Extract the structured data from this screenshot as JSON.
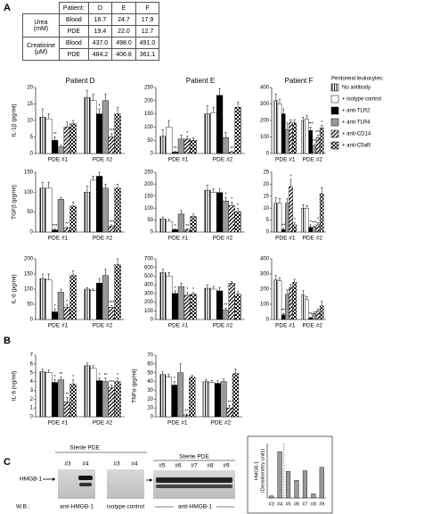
{
  "panels": [
    "A",
    "B",
    "C"
  ],
  "table": {
    "header": [
      "Patient:",
      "D",
      "E",
      "F"
    ],
    "groups": [
      {
        "label": [
          "Urea",
          "(mM)"
        ],
        "rows": [
          [
            "Blood",
            "16.7",
            "24.7",
            "17.9"
          ],
          [
            "PDE",
            "19.4",
            "22.0",
            "12.7"
          ]
        ]
      },
      {
        "label": [
          "Creatinine",
          "(μM)"
        ],
        "rows": [
          [
            "Blood",
            "437.0",
            "498.0",
            "491.0"
          ],
          [
            "PDE",
            "484.2",
            "406.8",
            "361.1"
          ]
        ]
      }
    ]
  },
  "legend": {
    "title": "Peritoneal leukocytes:",
    "items": [
      {
        "name": "No antibody",
        "pattern": "vstripe"
      },
      {
        "name": "+ isotype control",
        "pattern": "white"
      },
      {
        "name": "+ anti-TLR2",
        "pattern": "black"
      },
      {
        "name": "+ anti-TLR4",
        "pattern": "gray"
      },
      {
        "name": "+ anti-CD14",
        "pattern": "diag"
      },
      {
        "name": "+ anti-C5aR",
        "pattern": "check"
      }
    ]
  },
  "blot": {
    "left_title": "Sterile PDE",
    "lanes_a": [
      "#3",
      "#4"
    ],
    "lanes_b": [
      "#3",
      "#4"
    ],
    "band_label": "HMGB-1",
    "wb_label": "W.B.:",
    "antibody_a": "anti-HMGB-1",
    "antibody_b": "isotype control",
    "right_title": "Sterile PDE",
    "lanes_c": [
      "#5",
      "#6",
      "#7",
      "#8",
      "#9"
    ],
    "antibody_c": "anti-HMGB-1"
  },
  "chart_data": [
    {
      "type": "bar",
      "title": "Patient D",
      "ylabel": "IL-1β (pg/ml)",
      "categories": [
        "PDE #1",
        "PDE #2"
      ],
      "ylim": [
        0,
        20
      ],
      "yticks": [
        0,
        5,
        10,
        15,
        20
      ],
      "series": [
        {
          "values": [
            11,
            17
          ],
          "errors": [
            2.5,
            2
          ]
        },
        {
          "values": [
            10.5,
            16
          ],
          "errors": [
            1.5,
            2
          ]
        },
        {
          "values": [
            4,
            12
          ],
          "errors": [
            1,
            1.5
          ],
          "stars": [
            "**",
            "*"
          ]
        },
        {
          "values": [
            2,
            16
          ],
          "errors": [
            0.5,
            2
          ]
        },
        {
          "values": [
            8,
            5
          ],
          "errors": [
            1.5,
            1
          ],
          "stars": [
            null,
            "***"
          ]
        },
        {
          "values": [
            9,
            12
          ],
          "errors": [
            1,
            2
          ]
        }
      ]
    },
    {
      "type": "bar",
      "title": "Patient E",
      "categories": [
        "PDE #1",
        "PDE #2"
      ],
      "ylim": [
        0,
        250
      ],
      "yticks": [
        0,
        50,
        100,
        150,
        200,
        250
      ],
      "series": [
        {
          "values": [
            65,
            150
          ],
          "errors": [
            25,
            30
          ]
        },
        {
          "values": [
            100,
            155
          ],
          "errors": [
            25,
            20
          ]
        },
        {
          "values": [
            5,
            220
          ],
          "errors": [
            3,
            25
          ],
          "stars": [
            "**",
            null
          ]
        },
        {
          "values": [
            55,
            60
          ],
          "errors": [
            15,
            20
          ]
        },
        {
          "values": [
            55,
            5
          ],
          "errors": [
            10,
            3
          ],
          "stars": [
            "*",
            "**"
          ]
        },
        {
          "values": [
            50,
            175
          ],
          "errors": [
            10,
            20
          ]
        }
      ]
    },
    {
      "type": "bar",
      "title": "Patient F",
      "categories": [
        "PDE #1",
        "PDE #2"
      ],
      "ylim": [
        0,
        400
      ],
      "yticks": [
        0,
        100,
        200,
        300,
        400
      ],
      "series": [
        {
          "values": [
            320,
            200
          ],
          "errors": [
            40,
            20
          ]
        },
        {
          "values": [
            300,
            210
          ],
          "errors": [
            30,
            20
          ]
        },
        {
          "values": [
            240,
            140
          ],
          "errors": [
            30,
            20
          ],
          "stars": [
            null,
            "***"
          ]
        },
        {
          "values": [
            145,
            45
          ],
          "errors": [
            40,
            10
          ],
          "stars": [
            null,
            "**"
          ]
        },
        {
          "values": [
            185,
            95
          ],
          "errors": [
            20,
            15
          ],
          "stars": [
            null,
            "***"
          ]
        },
        {
          "values": [
            185,
            155
          ],
          "errors": [
            20,
            15
          ],
          "stars": [
            null,
            "*"
          ]
        }
      ]
    },
    {
      "type": "bar",
      "ylabel": "TGFβ (pg/ml)",
      "categories": [
        "PDE #1",
        "PDE #2"
      ],
      "ylim": [
        0,
        150
      ],
      "yticks": [
        0,
        50,
        100,
        150
      ],
      "series": [
        {
          "values": [
            110,
            100
          ],
          "errors": [
            15,
            15
          ]
        },
        {
          "values": [
            110,
            130
          ],
          "errors": [
            15,
            10
          ]
        },
        {
          "values": [
            5,
            140
          ],
          "errors": [
            3,
            10
          ],
          "stars": [
            "***",
            null
          ]
        },
        {
          "values": [
            82,
            110
          ],
          "errors": [
            5,
            10
          ]
        },
        {
          "values": [
            10,
            15
          ],
          "errors": [
            3,
            3
          ],
          "stars": [
            "**",
            "***"
          ]
        },
        {
          "values": [
            65,
            110
          ],
          "errors": [
            10,
            10
          ]
        }
      ]
    },
    {
      "type": "bar",
      "categories": [
        "PDE #1",
        "PDE #2"
      ],
      "ylim": [
        0,
        250
      ],
      "yticks": [
        0,
        50,
        100,
        150,
        200,
        250
      ],
      "series": [
        {
          "values": [
            55,
            175
          ],
          "errors": [
            8,
            20
          ]
        },
        {
          "values": [
            45,
            165
          ],
          "errors": [
            8,
            15
          ]
        },
        {
          "values": [
            10,
            165
          ],
          "errors": [
            3,
            15
          ],
          "stars": [
            "*",
            null
          ]
        },
        {
          "values": [
            75,
            130
          ],
          "errors": [
            15,
            15
          ],
          "stars": [
            null,
            "*"
          ]
        },
        {
          "values": [
            10,
            110
          ],
          "errors": [
            3,
            15
          ],
          "stars": [
            "**",
            "*"
          ]
        },
        {
          "values": [
            65,
            85
          ],
          "errors": [
            10,
            15
          ],
          "stars": [
            null,
            "*"
          ]
        }
      ]
    },
    {
      "type": "bar",
      "categories": [
        "PDE #1",
        "PDE #2"
      ],
      "ylim": [
        0,
        25
      ],
      "yticks": [
        0,
        5,
        10,
        15,
        20,
        25
      ],
      "series": [
        {
          "values": [
            12,
            10
          ],
          "errors": [
            2.5,
            1.5
          ]
        },
        {
          "values": [
            12,
            10
          ],
          "errors": [
            2,
            1
          ]
        },
        {
          "values": [
            1,
            2
          ],
          "errors": [
            0.5,
            1
          ],
          "stars": [
            "**",
            "*"
          ]
        },
        {
          "values": [
            12,
            2
          ],
          "errors": [
            2,
            0.5
          ],
          "stars": [
            null,
            "***"
          ]
        },
        {
          "values": [
            19,
            3
          ],
          "errors": [
            3,
            1
          ],
          "stars": [
            "*",
            "*"
          ]
        },
        {
          "values": [
            3,
            16
          ],
          "errors": [
            1,
            2.5
          ],
          "stars": [
            "*",
            null
          ]
        }
      ]
    },
    {
      "type": "bar",
      "ylabel": "IL-6 (pg/ml)",
      "categories": [
        "PDE #1",
        "PDE #2"
      ],
      "ylim": [
        0,
        200
      ],
      "yticks": [
        0,
        50,
        100,
        150,
        200
      ],
      "series": [
        {
          "values": [
            135,
            100
          ],
          "errors": [
            15,
            5
          ]
        },
        {
          "values": [
            130,
            95
          ],
          "errors": [
            20,
            5
          ]
        },
        {
          "values": [
            25,
            120
          ],
          "errors": [
            10,
            15
          ],
          "stars": [
            "*",
            null
          ]
        },
        {
          "values": [
            90,
            145
          ],
          "errors": [
            10,
            20
          ]
        },
        {
          "values": [
            40,
            40
          ],
          "errors": [
            10,
            5
          ],
          "stars": [
            "*",
            "***"
          ]
        },
        {
          "values": [
            145,
            180
          ],
          "errors": [
            15,
            20
          ]
        }
      ]
    },
    {
      "type": "bar",
      "categories": [
        "PDE #1",
        "PDE #2"
      ],
      "ylim": [
        0,
        700
      ],
      "yticks": [
        0,
        100,
        200,
        300,
        400,
        500,
        600,
        700
      ],
      "series": [
        {
          "values": [
            540,
            360
          ],
          "errors": [
            40,
            40
          ]
        },
        {
          "values": [
            500,
            350
          ],
          "errors": [
            40,
            30
          ]
        },
        {
          "values": [
            300,
            330
          ],
          "errors": [
            30,
            40
          ],
          "stars": [
            "*",
            null
          ]
        },
        {
          "values": [
            380,
            110
          ],
          "errors": [
            40,
            20
          ],
          "stars": [
            null,
            "**"
          ]
        },
        {
          "values": [
            280,
            420
          ],
          "errors": [
            30,
            20
          ],
          "stars": [
            "*",
            null
          ]
        },
        {
          "values": [
            290,
            290
          ],
          "errors": [
            20,
            30
          ],
          "stars": [
            "*",
            null
          ]
        }
      ]
    },
    {
      "type": "bar",
      "categories": [
        "PDE #1",
        "PDE #2"
      ],
      "ylim": [
        0,
        400
      ],
      "yticks": [
        0,
        100,
        200,
        300,
        400
      ],
      "series": [
        {
          "values": [
            260,
            160
          ],
          "errors": [
            30,
            30
          ]
        },
        {
          "values": [
            255,
            130
          ],
          "errors": [
            20,
            20
          ]
        },
        {
          "values": [
            30,
            10
          ],
          "errors": [
            10,
            5
          ],
          "stars": [
            "***",
            "**"
          ]
        },
        {
          "values": [
            165,
            40
          ],
          "errors": [
            30,
            10
          ]
        },
        {
          "values": [
            210,
            55
          ],
          "errors": [
            20,
            15
          ]
        },
        {
          "values": [
            245,
            90
          ],
          "errors": [
            20,
            30
          ]
        }
      ]
    },
    {
      "type": "bar",
      "ylabel": "IL-6 (ng/ml)",
      "categories": [
        "PDE #1",
        "PDE #2"
      ],
      "ylim": [
        0,
        7
      ],
      "yticks": [
        0,
        1,
        2,
        3,
        4,
        5,
        6,
        7
      ],
      "series": [
        {
          "values": [
            5.1,
            5.8
          ],
          "errors": [
            0.3,
            0.3
          ]
        },
        {
          "values": [
            5.0,
            5.5
          ],
          "errors": [
            0.3,
            0.3
          ]
        },
        {
          "values": [
            3.9,
            4.1
          ],
          "errors": [
            0.3,
            0.3
          ],
          "stars": [
            "*",
            "*"
          ]
        },
        {
          "values": [
            4.2,
            4.0
          ],
          "errors": [
            0.3,
            0.4
          ],
          "stars": [
            "**",
            "**"
          ]
        },
        {
          "values": [
            1.7,
            3.3
          ],
          "errors": [
            0.5,
            0.3
          ],
          "stars": [
            "**",
            "***"
          ]
        },
        {
          "values": [
            3.7,
            4.0
          ],
          "errors": [
            0.5,
            0.4
          ],
          "stars": [
            "*",
            "*"
          ]
        }
      ]
    },
    {
      "type": "bar",
      "ylabel": "TNFα (pg/ml)",
      "categories": [
        "PDE #1",
        "PDE #2"
      ],
      "ylim": [
        0,
        70
      ],
      "yticks": [
        0,
        10,
        20,
        30,
        40,
        50,
        60,
        70
      ],
      "series": [
        {
          "values": [
            48,
            40
          ],
          "errors": [
            3,
            2
          ]
        },
        {
          "values": [
            45,
            39
          ],
          "errors": [
            3,
            2
          ]
        },
        {
          "values": [
            36,
            38
          ],
          "errors": [
            4,
            3
          ],
          "stars": [
            "*",
            null
          ]
        },
        {
          "values": [
            50,
            40
          ],
          "errors": [
            10,
            3
          ]
        },
        {
          "values": [
            2,
            10
          ],
          "errors": [
            1,
            3
          ],
          "stars": [
            "**",
            "**"
          ]
        },
        {
          "values": [
            45,
            49
          ],
          "errors": [
            2,
            5
          ]
        }
      ]
    },
    {
      "type": "bar",
      "ylabel": [
        "HMGB-1",
        "(Densitometry units)"
      ],
      "categories": [
        "#3",
        "#4",
        "#5",
        "#6",
        "#7",
        "#8",
        "#9"
      ],
      "ylim": [
        0,
        8000
      ],
      "series": [
        {
          "color": "#999999",
          "values": [
            300,
            6800,
            3900,
            2600,
            4000,
            600,
            4500
          ]
        }
      ]
    }
  ]
}
